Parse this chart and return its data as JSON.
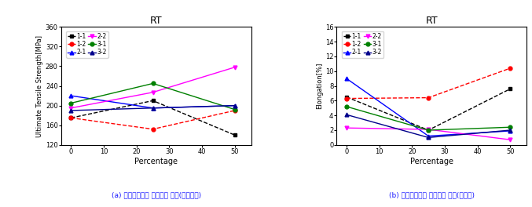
{
  "title": "RT",
  "xlabel": "Percentage",
  "x_values": [
    0,
    25,
    50
  ],
  "left_ylabel": "Ultimate Tensile Strength[MPa]",
  "right_ylabel": "Elongation[%]",
  "left_ylim": [
    120,
    360
  ],
  "right_ylim": [
    0,
    16
  ],
  "left_yticks": [
    120,
    160,
    200,
    240,
    280,
    320,
    360
  ],
  "right_yticks": [
    0,
    2,
    4,
    6,
    8,
    10,
    12,
    14,
    16
  ],
  "xticks": [
    0,
    10,
    20,
    30,
    40,
    50
  ],
  "series_left": [
    {
      "label": "1-1",
      "color": "#000000",
      "marker": "s",
      "linestyle": "--",
      "values": [
        175,
        210,
        140
      ]
    },
    {
      "label": "1-2",
      "color": "#ff0000",
      "marker": "o",
      "linestyle": "--",
      "values": [
        175,
        152,
        190
      ]
    },
    {
      "label": "2-1",
      "color": "#0000ff",
      "marker": "^",
      "linestyle": "-",
      "values": [
        220,
        195,
        200
      ]
    },
    {
      "label": "2-2",
      "color": "#ff00ff",
      "marker": "v",
      "linestyle": "-",
      "values": [
        195,
        227,
        278
      ]
    },
    {
      "label": "3-1",
      "color": "#008000",
      "marker": "o",
      "linestyle": "-",
      "values": [
        205,
        245,
        192
      ]
    },
    {
      "label": "3-2",
      "color": "#00008b",
      "marker": "^",
      "linestyle": "-",
      "values": [
        190,
        195,
        200
      ]
    }
  ],
  "series_right": [
    {
      "label": "1-1",
      "color": "#000000",
      "marker": "s",
      "linestyle": "--",
      "values": [
        6.5,
        2.0,
        7.6
      ]
    },
    {
      "label": "1-2",
      "color": "#ff0000",
      "marker": "o",
      "linestyle": "--",
      "values": [
        6.3,
        6.4,
        10.4
      ]
    },
    {
      "label": "2-1",
      "color": "#0000ff",
      "marker": "^",
      "linestyle": "-",
      "values": [
        9.0,
        1.2,
        1.9
      ]
    },
    {
      "label": "2-2",
      "color": "#ff00ff",
      "marker": "v",
      "linestyle": "-",
      "values": [
        2.3,
        2.1,
        0.7
      ]
    },
    {
      "label": "3-1",
      "color": "#008000",
      "marker": "o",
      "linestyle": "-",
      "values": [
        5.2,
        2.0,
        2.4
      ]
    },
    {
      "label": "3-2",
      "color": "#00008b",
      "marker": "^",
      "linestyle": "-",
      "values": [
        4.1,
        1.0,
        2.0
      ]
    }
  ],
  "caption_left": "(a) 점진응고품의 합금원소 영향(인장강도)",
  "caption_right": "(b) 점진응고품의 합금원소 영향(연신율)"
}
